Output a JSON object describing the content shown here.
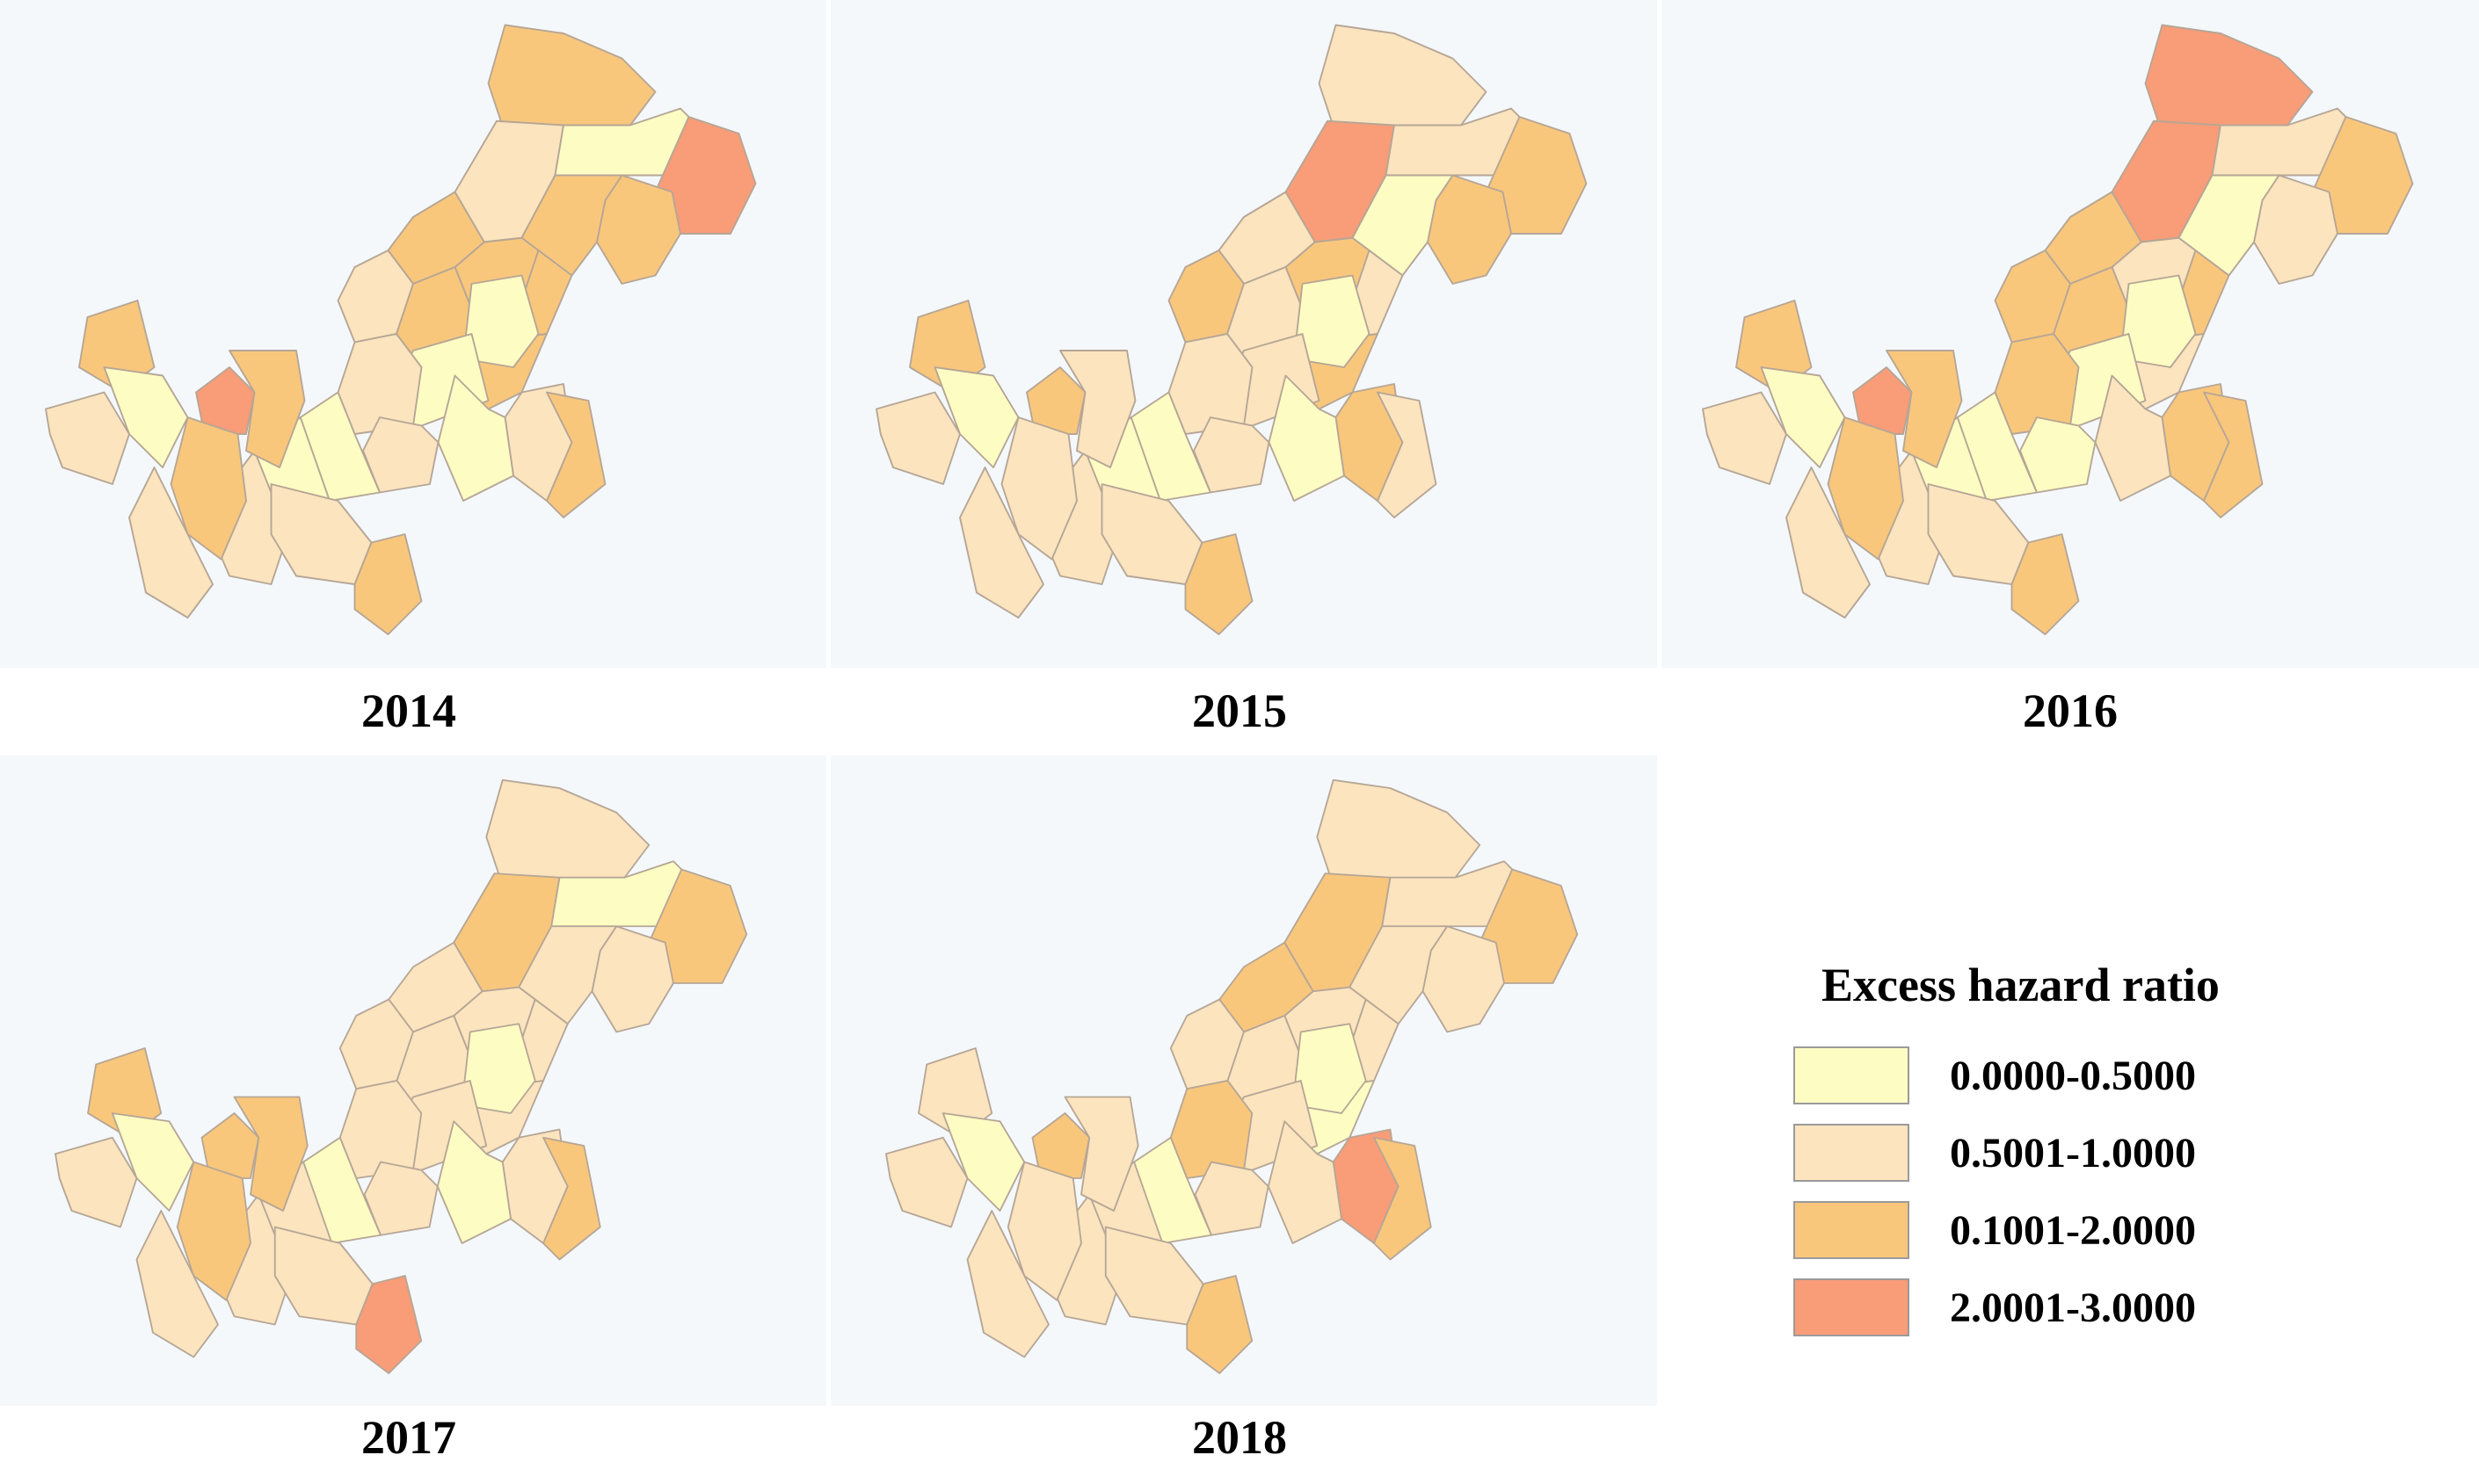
{
  "figure": {
    "legend": {
      "title": "Excess hazard ratio",
      "classes": [
        {
          "label": "0.0000-0.5000",
          "color": "#fdfdc3"
        },
        {
          "label": "0.5001-1.0000",
          "color": "#fbe4be"
        },
        {
          "label": "0.1001-2.0000",
          "color": "#f9c77c"
        },
        {
          "label": "2.0001-3.0000",
          "color": "#f99c78"
        }
      ]
    },
    "maps": [
      {
        "year": "2014",
        "region_classes": [
          2,
          1,
          0,
          3,
          2,
          2,
          2,
          2,
          1,
          2,
          2,
          2,
          0,
          0,
          1,
          1,
          0,
          1,
          0,
          2,
          0,
          1,
          3,
          2,
          2,
          1,
          0,
          2,
          1,
          2,
          1
        ]
      },
      {
        "year": "2015",
        "region_classes": [
          1,
          3,
          1,
          2,
          2,
          0,
          2,
          1,
          2,
          1,
          1,
          2,
          0,
          1,
          1,
          2,
          0,
          1,
          0,
          1,
          0,
          1,
          2,
          1,
          2,
          1,
          0,
          1,
          1,
          2,
          1
        ]
      },
      {
        "year": "2016",
        "region_classes": [
          3,
          3,
          1,
          2,
          1,
          0,
          1,
          2,
          2,
          2,
          2,
          1,
          0,
          0,
          2,
          2,
          1,
          0,
          0,
          2,
          0,
          1,
          3,
          2,
          2,
          1,
          0,
          2,
          1,
          2,
          1
        ]
      },
      {
        "year": "2017",
        "region_classes": [
          1,
          2,
          0,
          2,
          1,
          1,
          1,
          1,
          1,
          1,
          1,
          1,
          0,
          1,
          1,
          1,
          0,
          1,
          0,
          2,
          1,
          1,
          2,
          2,
          2,
          1,
          0,
          2,
          1,
          3,
          1
        ]
      },
      {
        "year": "2018",
        "region_classes": [
          1,
          2,
          1,
          2,
          1,
          1,
          1,
          2,
          1,
          1,
          1,
          0,
          0,
          1,
          2,
          3,
          1,
          1,
          0,
          2,
          1,
          1,
          2,
          1,
          1,
          1,
          0,
          1,
          1,
          2,
          1
        ]
      }
    ]
  }
}
